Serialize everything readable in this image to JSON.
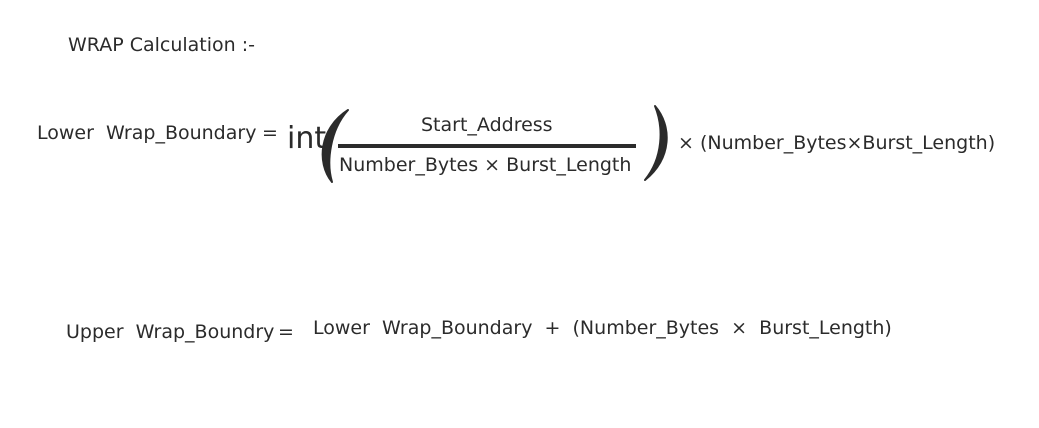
{
  "title": "WRAP Calculation :-",
  "lower": {
    "lhs": "Lower  Wrap_Boundary",
    "equals": "=",
    "func": "int",
    "numerator": "Start_Address",
    "denominator": "Number_Bytes × Burst_Length",
    "rhs": "× (Number_Bytes×Burst_Length)"
  },
  "upper": {
    "lhs": "Upper  Wrap_Boundry",
    "equals": "=",
    "rhs": "Lower  Wrap_Boundary  +  (Number_Bytes  ×  Burst_Length)"
  }
}
